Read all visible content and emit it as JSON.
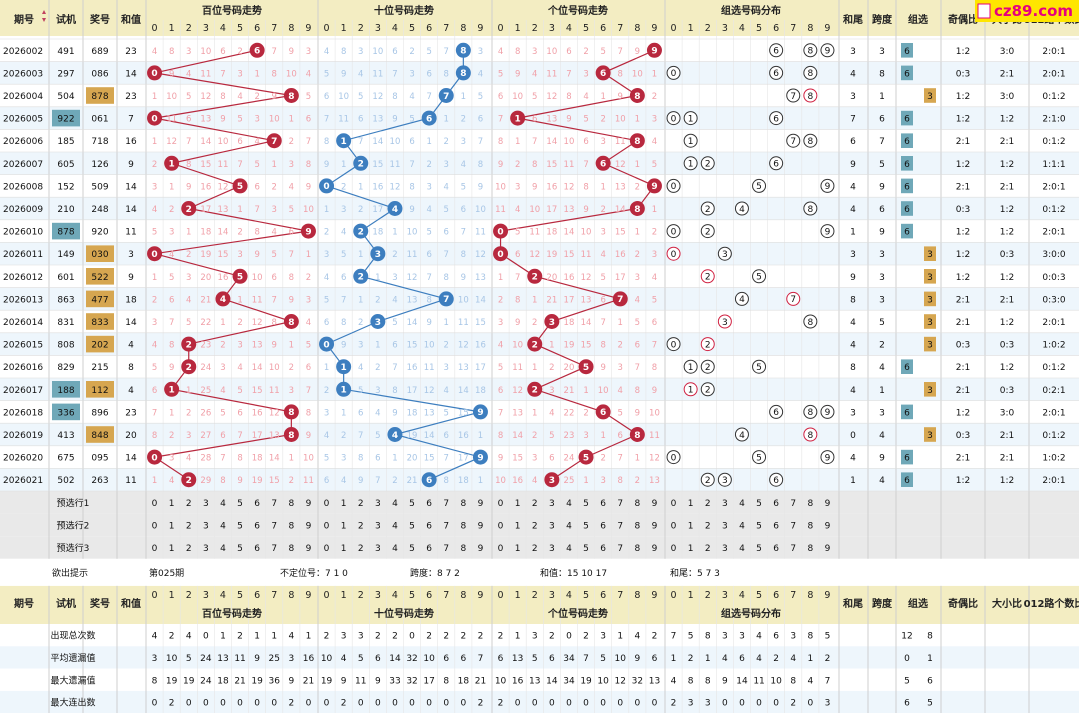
{
  "site": {
    "logo_text": "cz89.com",
    "logo_color": "#e6007e",
    "logo_bg": "#ffe600"
  },
  "colors": {
    "header_bg": "#f3edc2",
    "row_alt_bg": "#eef6fc",
    "red_ball": "#b8283e",
    "blue_ball": "#3d7ebf",
    "miss_red": "#f0a0a8",
    "miss_blue": "#a8c6e6",
    "teal_badge": "#6fa8b8",
    "orange_badge": "#d6a650"
  },
  "header": {
    "period": "期号",
    "sim": "试机",
    "draw": "奖号",
    "sum": "和值",
    "hundreds": "百位号码走势",
    "tens": "十位号码走势",
    "units": "个位号码走势",
    "group": "组选号码分布",
    "sum_tail": "和尾",
    "span": "跨度",
    "group_sel": "组选",
    "odd_even": "奇偶比",
    "big_small": "大小比",
    "road012": "012路个数比"
  },
  "digits": [
    "0",
    "1",
    "2",
    "3",
    "4",
    "5",
    "6",
    "7",
    "8",
    "9"
  ],
  "rows": [
    {
      "p": "2026002",
      "s": "491",
      "d": "689",
      "sum": "23",
      "sim_hl": false,
      "draw_hl": false,
      "h": 6,
      "t": 8,
      "u": 9,
      "g": [
        6,
        8,
        9
      ],
      "gr": [],
      "tail": "3",
      "span": "3",
      "gs": "6",
      "oe": "1:2",
      "bs": "3:0",
      "r": "2:0:1"
    },
    {
      "p": "2026003",
      "s": "297",
      "d": "086",
      "sum": "14",
      "sim_hl": false,
      "draw_hl": false,
      "h": 0,
      "t": 8,
      "u": 6,
      "g": [
        0,
        6,
        8
      ],
      "gr": [],
      "tail": "4",
      "span": "8",
      "gs": "6",
      "oe": "0:3",
      "bs": "2:1",
      "r": "2:0:1"
    },
    {
      "p": "2026004",
      "s": "504",
      "d": "878",
      "sum": "23",
      "sim_hl": false,
      "draw_hl": true,
      "h": 8,
      "t": 7,
      "u": 8,
      "g": [
        7
      ],
      "gr": [
        8
      ],
      "tail": "3",
      "span": "1",
      "gs": "3",
      "oe": "1:2",
      "bs": "3:0",
      "r": "0:1:2"
    },
    {
      "p": "2026005",
      "s": "922",
      "d": "061",
      "sum": "7",
      "sim_hl": true,
      "draw_hl": false,
      "h": 0,
      "t": 6,
      "u": 1,
      "g": [
        0,
        1,
        6
      ],
      "gr": [],
      "tail": "7",
      "span": "6",
      "gs": "6",
      "oe": "1:2",
      "bs": "1:2",
      "r": "2:1:0"
    },
    {
      "p": "2026006",
      "s": "185",
      "d": "718",
      "sum": "16",
      "sim_hl": false,
      "draw_hl": false,
      "h": 7,
      "t": 1,
      "u": 8,
      "g": [
        1,
        7,
        8
      ],
      "gr": [],
      "tail": "6",
      "span": "7",
      "gs": "6",
      "oe": "2:1",
      "bs": "2:1",
      "r": "0:1:2"
    },
    {
      "p": "2026007",
      "s": "605",
      "d": "126",
      "sum": "9",
      "sim_hl": false,
      "draw_hl": false,
      "h": 1,
      "t": 2,
      "u": 6,
      "g": [
        1,
        2,
        6
      ],
      "gr": [],
      "tail": "9",
      "span": "5",
      "gs": "6",
      "oe": "1:2",
      "bs": "1:2",
      "r": "1:1:1"
    },
    {
      "p": "2026008",
      "s": "152",
      "d": "509",
      "sum": "14",
      "sim_hl": false,
      "draw_hl": false,
      "h": 5,
      "t": 0,
      "u": 9,
      "g": [
        0,
        5,
        9
      ],
      "gr": [],
      "tail": "4",
      "span": "9",
      "gs": "6",
      "oe": "2:1",
      "bs": "2:1",
      "r": "2:0:1"
    },
    {
      "p": "2026009",
      "s": "210",
      "d": "248",
      "sum": "14",
      "sim_hl": false,
      "draw_hl": false,
      "h": 2,
      "t": 4,
      "u": 8,
      "g": [
        2,
        4,
        8
      ],
      "gr": [],
      "tail": "4",
      "span": "6",
      "gs": "6",
      "oe": "0:3",
      "bs": "1:2",
      "r": "0:1:2"
    },
    {
      "p": "2026010",
      "s": "878",
      "d": "920",
      "sum": "11",
      "sim_hl": true,
      "draw_hl": false,
      "h": 9,
      "t": 2,
      "u": 0,
      "g": [
        0,
        2,
        9
      ],
      "gr": [],
      "tail": "1",
      "span": "9",
      "gs": "6",
      "oe": "1:2",
      "bs": "1:2",
      "r": "2:0:1"
    },
    {
      "p": "2026011",
      "s": "149",
      "d": "030",
      "sum": "3",
      "sim_hl": false,
      "draw_hl": true,
      "h": 0,
      "t": 3,
      "u": 0,
      "g": [
        3
      ],
      "gr": [
        0
      ],
      "tail": "3",
      "span": "3",
      "gs": "3",
      "oe": "1:2",
      "bs": "0:3",
      "r": "3:0:0"
    },
    {
      "p": "2026012",
      "s": "601",
      "d": "522",
      "sum": "9",
      "sim_hl": false,
      "draw_hl": true,
      "h": 5,
      "t": 2,
      "u": 2,
      "g": [
        5
      ],
      "gr": [
        2
      ],
      "tail": "9",
      "span": "3",
      "gs": "3",
      "oe": "1:2",
      "bs": "1:2",
      "r": "0:0:3"
    },
    {
      "p": "2026013",
      "s": "863",
      "d": "477",
      "sum": "18",
      "sim_hl": false,
      "draw_hl": true,
      "h": 4,
      "t": 7,
      "u": 7,
      "g": [
        4
      ],
      "gr": [
        7
      ],
      "tail": "8",
      "span": "3",
      "gs": "3",
      "oe": "2:1",
      "bs": "2:1",
      "r": "0:3:0"
    },
    {
      "p": "2026014",
      "s": "831",
      "d": "833",
      "sum": "14",
      "sim_hl": false,
      "draw_hl": true,
      "h": 8,
      "t": 3,
      "u": 3,
      "g": [
        8
      ],
      "gr": [
        3
      ],
      "tail": "4",
      "span": "5",
      "gs": "3",
      "oe": "2:1",
      "bs": "1:2",
      "r": "2:0:1"
    },
    {
      "p": "2026015",
      "s": "808",
      "d": "202",
      "sum": "4",
      "sim_hl": false,
      "draw_hl": true,
      "h": 2,
      "t": 0,
      "u": 2,
      "g": [
        0
      ],
      "gr": [
        2
      ],
      "tail": "4",
      "span": "2",
      "gs": "3",
      "oe": "0:3",
      "bs": "0:3",
      "r": "1:0:2"
    },
    {
      "p": "2026016",
      "s": "829",
      "d": "215",
      "sum": "8",
      "sim_hl": false,
      "draw_hl": false,
      "h": 2,
      "t": 1,
      "u": 5,
      "g": [
        1,
        2,
        5
      ],
      "gr": [],
      "tail": "8",
      "span": "4",
      "gs": "6",
      "oe": "2:1",
      "bs": "1:2",
      "r": "0:1:2"
    },
    {
      "p": "2026017",
      "s": "188",
      "d": "112",
      "sum": "4",
      "sim_hl": true,
      "draw_hl": true,
      "h": 1,
      "t": 1,
      "u": 2,
      "g": [
        2
      ],
      "gr": [
        1
      ],
      "tail": "4",
      "span": "1",
      "gs": "3",
      "oe": "2:1",
      "bs": "0:3",
      "r": "0:2:1"
    },
    {
      "p": "2026018",
      "s": "336",
      "d": "896",
      "sum": "23",
      "sim_hl": true,
      "draw_hl": false,
      "h": 8,
      "t": 9,
      "u": 6,
      "g": [
        6,
        8,
        9
      ],
      "gr": [],
      "tail": "3",
      "span": "3",
      "gs": "6",
      "oe": "1:2",
      "bs": "3:0",
      "r": "2:0:1"
    },
    {
      "p": "2026019",
      "s": "413",
      "d": "848",
      "sum": "20",
      "sim_hl": false,
      "draw_hl": true,
      "h": 8,
      "t": 4,
      "u": 8,
      "g": [
        4
      ],
      "gr": [
        8
      ],
      "tail": "0",
      "span": "4",
      "gs": "3",
      "oe": "0:3",
      "bs": "2:1",
      "r": "0:1:2"
    },
    {
      "p": "2026020",
      "s": "675",
      "d": "095",
      "sum": "14",
      "sim_hl": false,
      "draw_hl": false,
      "h": 0,
      "t": 9,
      "u": 5,
      "g": [
        0,
        5,
        9
      ],
      "gr": [],
      "tail": "4",
      "span": "9",
      "gs": "6",
      "oe": "2:1",
      "bs": "2:1",
      "r": "1:0:2"
    },
    {
      "p": "2026021",
      "s": "502",
      "d": "263",
      "sum": "11",
      "sim_hl": false,
      "draw_hl": false,
      "h": 2,
      "t": 6,
      "u": 3,
      "g": [
        2,
        3,
        6
      ],
      "gr": [],
      "tail": "1",
      "span": "4",
      "gs": "6",
      "oe": "1:2",
      "bs": "1:2",
      "r": "2:0:1"
    }
  ],
  "preselect": [
    "预选行1",
    "预选行2",
    "预选行3"
  ],
  "hint": {
    "label": "欲出提示",
    "issue": "第025期",
    "dingwei": "不定位号：7 1 0",
    "kuadu": "跨度：8 7 2",
    "hezhi": "和值：15 10 17",
    "hewei": "和尾：5 7 3"
  },
  "stats": [
    {
      "label": "出现总次数",
      "h": [
        "4",
        "2",
        "4",
        "0",
        "1",
        "2",
        "1",
        "1",
        "4",
        "1"
      ],
      "t": [
        "2",
        "3",
        "3",
        "2",
        "2",
        "0",
        "2",
        "2",
        "2",
        "2"
      ],
      "u": [
        "2",
        "1",
        "3",
        "2",
        "0",
        "2",
        "3",
        "1",
        "4",
        "2"
      ],
      "g": [
        "7",
        "5",
        "8",
        "3",
        "3",
        "4",
        "6",
        "3",
        "8",
        "5"
      ],
      "gs": [
        "12",
        "8"
      ]
    },
    {
      "label": "平均遗漏值",
      "h": [
        "3",
        "10",
        "5",
        "24",
        "13",
        "11",
        "9",
        "25",
        "3",
        "16"
      ],
      "t": [
        "10",
        "4",
        "5",
        "6",
        "14",
        "32",
        "10",
        "6",
        "6",
        "7"
      ],
      "u": [
        "6",
        "13",
        "5",
        "6",
        "34",
        "7",
        "5",
        "10",
        "9",
        "6"
      ],
      "g": [
        "1",
        "2",
        "1",
        "4",
        "6",
        "4",
        "2",
        "4",
        "1",
        "2"
      ],
      "gs": [
        "0",
        "1"
      ]
    },
    {
      "label": "最大遗漏值",
      "h": [
        "8",
        "19",
        "19",
        "24",
        "18",
        "21",
        "19",
        "36",
        "9",
        "21"
      ],
      "t": [
        "19",
        "9",
        "11",
        "9",
        "33",
        "32",
        "17",
        "8",
        "18",
        "21"
      ],
      "u": [
        "10",
        "16",
        "13",
        "14",
        "34",
        "19",
        "10",
        "12",
        "32",
        "13"
      ],
      "g": [
        "4",
        "8",
        "8",
        "9",
        "14",
        "11",
        "10",
        "8",
        "4",
        "7"
      ],
      "gs": [
        "5",
        "6"
      ]
    },
    {
      "label": "最大连出数",
      "h": [
        "0",
        "2",
        "0",
        "0",
        "0",
        "0",
        "0",
        "0",
        "2",
        "0"
      ],
      "t": [
        "0",
        "2",
        "0",
        "0",
        "0",
        "0",
        "0",
        "0",
        "0",
        "2"
      ],
      "u": [
        "2",
        "0",
        "0",
        "0",
        "0",
        "0",
        "0",
        "0",
        "0",
        "0"
      ],
      "g": [
        "2",
        "3",
        "3",
        "0",
        "0",
        "0",
        "0",
        "2",
        "0",
        "3"
      ],
      "gs": [
        "6",
        "5"
      ]
    }
  ]
}
